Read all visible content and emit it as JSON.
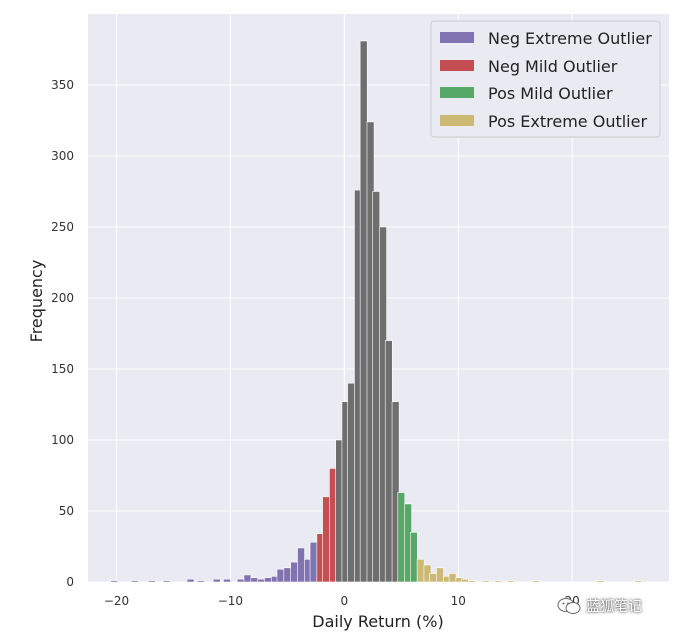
{
  "chart_data": {
    "type": "bar",
    "title": "",
    "xlabel": "Daily Return (%)",
    "ylabel": "Frequency",
    "xlim": [
      -22.5,
      28.5
    ],
    "ylim": [
      0,
      400
    ],
    "xticks": [
      -20,
      -10,
      0,
      10,
      20
    ],
    "yticks": [
      0,
      50,
      100,
      150,
      200,
      250,
      300,
      350
    ],
    "xtick_labels": [
      "−20",
      "−10",
      "0",
      "10",
      "20"
    ],
    "ytick_labels": [
      "0",
      "50",
      "100",
      "150",
      "200",
      "250",
      "300",
      "350"
    ],
    "bin_width": 0.62,
    "grid": true,
    "legend_position": "top-right",
    "colors": {
      "background": "#eaeaf2",
      "grid": "#ffffff",
      "neg_extreme": "#8172b2",
      "neg_mild": "#c44e52",
      "normal": "#6e6e6e",
      "pos_mild": "#55a868",
      "pos_extreme": "#ccb974"
    },
    "legend": [
      {
        "label": "Neg Extreme Outlier",
        "color_key": "neg_extreme"
      },
      {
        "label": "Neg Mild Outlier",
        "color_key": "neg_mild"
      },
      {
        "label": "Pos Mild Outlier",
        "color_key": "pos_mild"
      },
      {
        "label": "Pos Extreme Outlier",
        "color_key": "pos_extreme"
      }
    ],
    "series": [
      {
        "key": "neg_extreme",
        "bins": [
          [
            -20.2,
            1
          ],
          [
            -18.4,
            1
          ],
          [
            -16.9,
            1
          ],
          [
            -15.6,
            1
          ],
          [
            -13.5,
            2
          ],
          [
            -12.6,
            1
          ],
          [
            -11.2,
            2
          ],
          [
            -10.3,
            2
          ],
          [
            -9.1,
            2
          ],
          [
            -8.5,
            5
          ],
          [
            -7.9,
            3
          ],
          [
            -7.3,
            2
          ],
          [
            -6.7,
            3
          ],
          [
            -6.1,
            4
          ],
          [
            -5.6,
            9
          ],
          [
            -5.0,
            10
          ],
          [
            -4.4,
            14
          ],
          [
            -3.8,
            24
          ],
          [
            -3.2,
            16
          ],
          [
            -2.7,
            28
          ]
        ]
      },
      {
        "key": "neg_mild",
        "bins": [
          [
            -2.1,
            34
          ],
          [
            -1.6,
            60
          ],
          [
            -1.0,
            80
          ]
        ]
      },
      {
        "key": "normal",
        "bins": [
          [
            -0.45,
            100
          ],
          [
            0.1,
            127
          ],
          [
            0.6,
            140
          ],
          [
            1.2,
            276
          ],
          [
            1.7,
            381
          ],
          [
            2.3,
            324
          ],
          [
            2.8,
            275
          ],
          [
            3.4,
            250
          ],
          [
            3.9,
            170
          ],
          [
            4.5,
            127
          ]
        ]
      },
      {
        "key": "pos_mild",
        "bins": [
          [
            5.0,
            63
          ],
          [
            5.6,
            55
          ],
          [
            6.1,
            35
          ]
        ]
      },
      {
        "key": "pos_extreme",
        "bins": [
          [
            6.7,
            16
          ],
          [
            7.3,
            12
          ],
          [
            7.8,
            6
          ],
          [
            8.4,
            10
          ],
          [
            9.0,
            4
          ],
          [
            9.5,
            6
          ],
          [
            10.1,
            3
          ],
          [
            10.6,
            2
          ],
          [
            11.2,
            1
          ],
          [
            12.4,
            1
          ],
          [
            13.5,
            1
          ],
          [
            14.6,
            1
          ],
          [
            16.8,
            1
          ],
          [
            22.5,
            1
          ],
          [
            25.8,
            1
          ]
        ]
      }
    ]
  },
  "watermark": {
    "text": "蓝狐笔记",
    "icon": "wechat-icon"
  }
}
